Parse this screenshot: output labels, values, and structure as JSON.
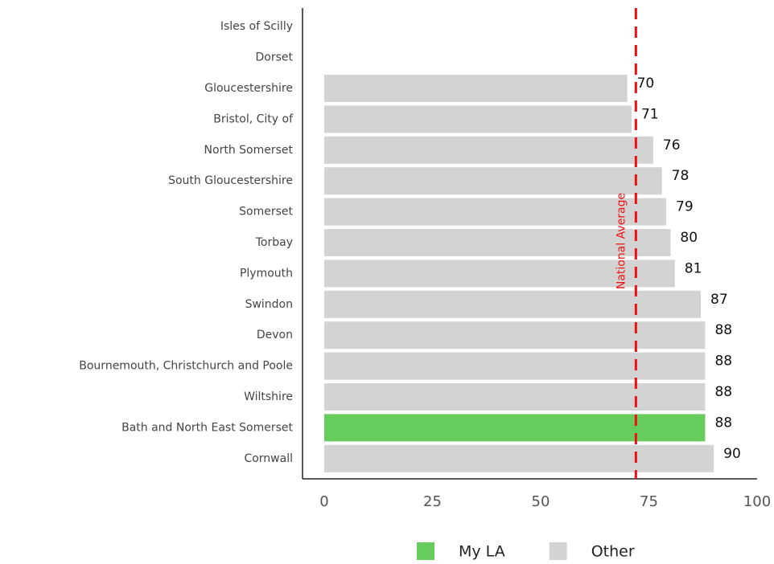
{
  "chart_data": {
    "type": "bar",
    "orientation": "horizontal",
    "categories": [
      "Isles of Scilly",
      "Dorset",
      "Gloucestershire",
      "Bristol, City of",
      "North Somerset",
      "South Gloucestershire",
      "Somerset",
      "Torbay",
      "Plymouth",
      "Swindon",
      "Devon",
      "Bournemouth, Christchurch and Poole",
      "Wiltshire",
      "Bath and North East Somerset",
      "Cornwall"
    ],
    "values": [
      null,
      null,
      70,
      71,
      76,
      78,
      79,
      80,
      81,
      87,
      88,
      88,
      88,
      88,
      90
    ],
    "colors": [
      null,
      null,
      "#d3d3d3",
      "#d3d3d3",
      "#d3d3d3",
      "#d3d3d3",
      "#d3d3d3",
      "#d3d3d3",
      "#d3d3d3",
      "#d3d3d3",
      "#d3d3d3",
      "#d3d3d3",
      "#d3d3d3",
      "#66cc5c",
      "#d3d3d3"
    ],
    "xlim": [
      0,
      100
    ],
    "xticks": [
      0,
      25,
      50,
      75,
      100
    ],
    "reference_line": {
      "label": "National Average",
      "value": 72,
      "color": "#ee1111"
    },
    "legend": [
      {
        "name": "My LA",
        "color": "#66cc5c"
      },
      {
        "name": "Other",
        "color": "#d3d3d3"
      }
    ]
  }
}
